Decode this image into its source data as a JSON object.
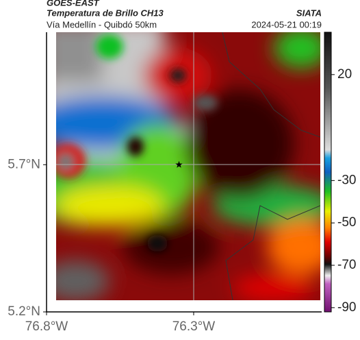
{
  "header": {
    "title": "GOES-EAST",
    "subtitle": "Temperatura de Brillo CH13",
    "route": "Vía Medellín - Quibdó 50km",
    "source": "SIATA",
    "timestamp": "2024-05-21 00:19"
  },
  "map": {
    "xlim": [
      -76.8,
      -75.865
    ],
    "ylim": [
      5.2,
      6.15
    ],
    "xticks": [
      {
        "value": -76.8,
        "label": "76.8°W"
      },
      {
        "value": -76.3,
        "label": "76.3°W"
      }
    ],
    "yticks": [
      {
        "value": 5.7,
        "label": "5.7°N"
      },
      {
        "value": 5.2,
        "label": "5.2°N"
      }
    ],
    "marker": [
      -76.35,
      5.7
    ]
  },
  "colorbar": {
    "lim": [
      40,
      -92
    ],
    "ticks": [
      20,
      -30,
      -50,
      -70,
      -90
    ]
  }
}
